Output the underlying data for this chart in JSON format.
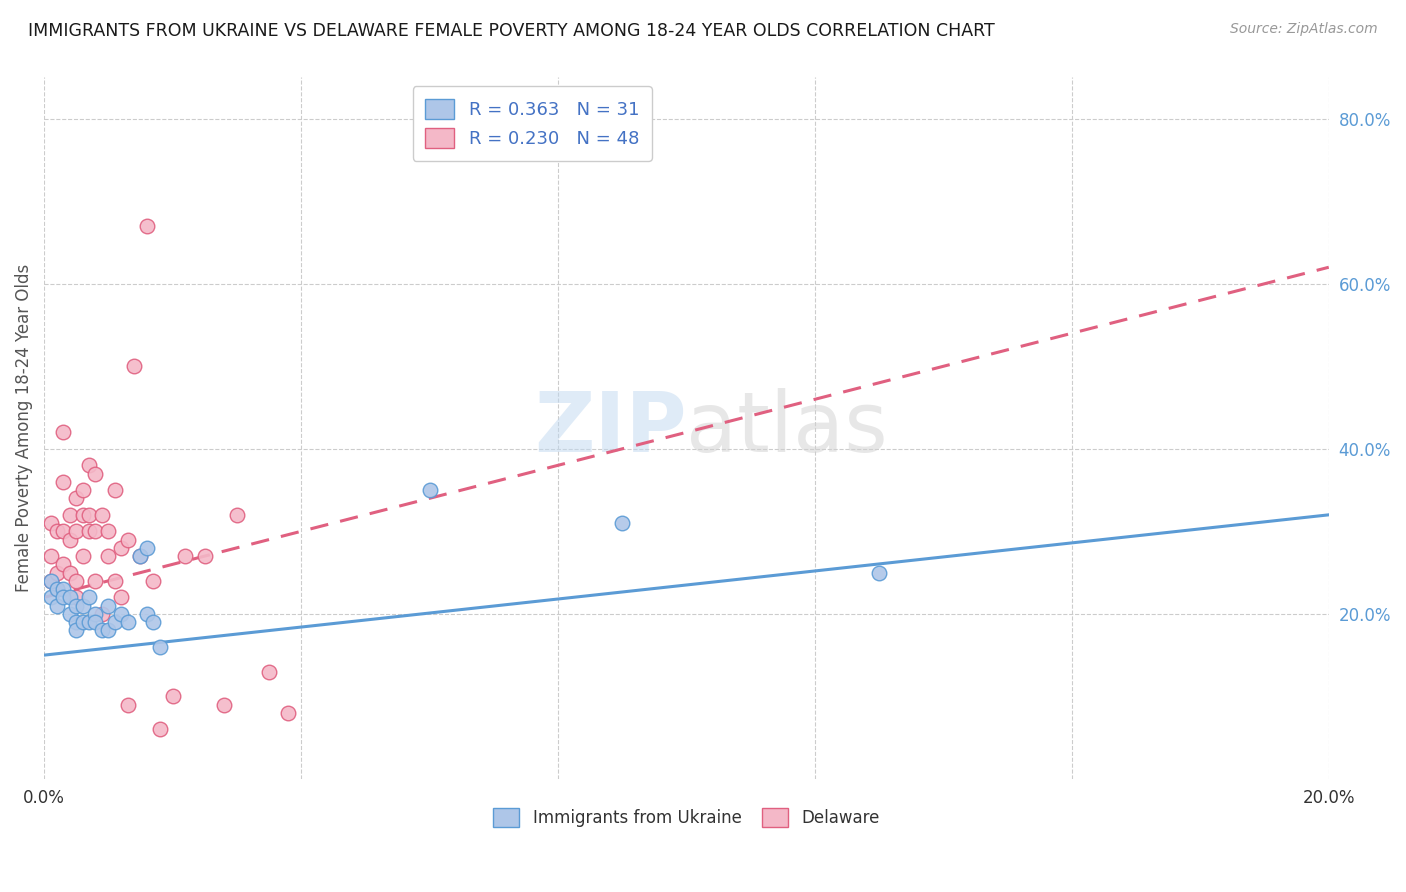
{
  "title": "IMMIGRANTS FROM UKRAINE VS DELAWARE FEMALE POVERTY AMONG 18-24 YEAR OLDS CORRELATION CHART",
  "source": "Source: ZipAtlas.com",
  "ylabel": "Female Poverty Among 18-24 Year Olds",
  "xlim": [
    0.0,
    0.2
  ],
  "ylim": [
    0.0,
    0.85
  ],
  "xticks": [
    0.0,
    0.04,
    0.08,
    0.12,
    0.16,
    0.2
  ],
  "yticks_right": [
    0.2,
    0.4,
    0.6,
    0.8
  ],
  "blue_fill": "#aec6e8",
  "blue_edge": "#5b9bd5",
  "pink_fill": "#f4b8c8",
  "pink_edge": "#e06080",
  "blue_line_color": "#5b9bd5",
  "pink_line_color": "#e06080",
  "legend_text_color": "#4472c4",
  "watermark": "ZIPatlas",
  "series1_label": "Immigrants from Ukraine",
  "series2_label": "Delaware",
  "R1": 0.363,
  "N1": 31,
  "R2": 0.23,
  "N2": 48,
  "blue_scatter_x": [
    0.001,
    0.001,
    0.002,
    0.002,
    0.003,
    0.003,
    0.004,
    0.004,
    0.005,
    0.005,
    0.005,
    0.006,
    0.006,
    0.007,
    0.007,
    0.008,
    0.008,
    0.009,
    0.01,
    0.01,
    0.011,
    0.012,
    0.013,
    0.015,
    0.016,
    0.016,
    0.017,
    0.018,
    0.06,
    0.09,
    0.13
  ],
  "blue_scatter_y": [
    0.24,
    0.22,
    0.23,
    0.21,
    0.23,
    0.22,
    0.22,
    0.2,
    0.21,
    0.19,
    0.18,
    0.21,
    0.19,
    0.22,
    0.19,
    0.2,
    0.19,
    0.18,
    0.21,
    0.18,
    0.19,
    0.2,
    0.19,
    0.27,
    0.28,
    0.2,
    0.19,
    0.16,
    0.35,
    0.31,
    0.25
  ],
  "pink_scatter_x": [
    0.001,
    0.001,
    0.001,
    0.002,
    0.002,
    0.002,
    0.003,
    0.003,
    0.003,
    0.003,
    0.004,
    0.004,
    0.004,
    0.005,
    0.005,
    0.005,
    0.005,
    0.006,
    0.006,
    0.006,
    0.007,
    0.007,
    0.007,
    0.008,
    0.008,
    0.008,
    0.009,
    0.009,
    0.01,
    0.01,
    0.011,
    0.011,
    0.012,
    0.012,
    0.013,
    0.013,
    0.014,
    0.015,
    0.016,
    0.017,
    0.018,
    0.02,
    0.022,
    0.025,
    0.028,
    0.03,
    0.035,
    0.038
  ],
  "pink_scatter_y": [
    0.24,
    0.27,
    0.31,
    0.25,
    0.3,
    0.23,
    0.26,
    0.36,
    0.42,
    0.3,
    0.29,
    0.32,
    0.25,
    0.24,
    0.3,
    0.34,
    0.22,
    0.32,
    0.35,
    0.27,
    0.32,
    0.3,
    0.38,
    0.37,
    0.3,
    0.24,
    0.32,
    0.2,
    0.3,
    0.27,
    0.35,
    0.24,
    0.28,
    0.22,
    0.29,
    0.09,
    0.5,
    0.27,
    0.67,
    0.24,
    0.06,
    0.1,
    0.27,
    0.27,
    0.09,
    0.32,
    0.13,
    0.08
  ],
  "blue_trend_x": [
    0.0,
    0.2
  ],
  "blue_trend_y": [
    0.15,
    0.32
  ],
  "pink_trend_x": [
    0.0,
    0.2
  ],
  "pink_trend_y": [
    0.22,
    0.62
  ]
}
